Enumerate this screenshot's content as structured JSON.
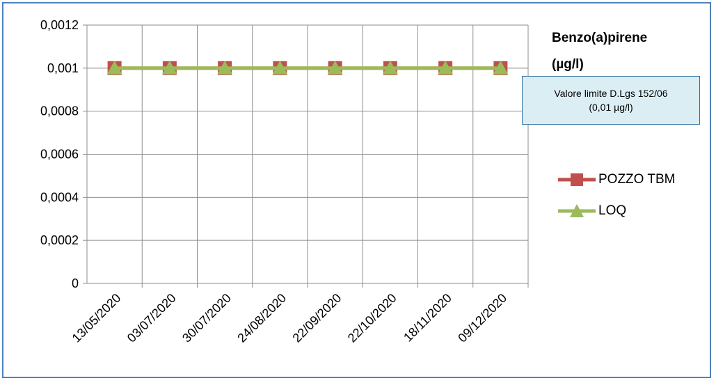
{
  "chart_data": {
    "type": "line",
    "title": "Benzo(a)pirene\n(µg/l)",
    "xlabel": "",
    "ylabel": "",
    "categories": [
      "13/05/2020",
      "03/07/2020",
      "30/07/2020",
      "24/08/2020",
      "22/09/2020",
      "22/10/2020",
      "18/11/2020",
      "09/12/2020"
    ],
    "series": [
      {
        "name": "POZZO TBM",
        "values": [
          0.001,
          0.001,
          0.001,
          0.001,
          0.001,
          0.001,
          0.001,
          0.001
        ],
        "color": "#c0504d",
        "marker": "square"
      },
      {
        "name": "LOQ",
        "values": [
          0.001,
          0.001,
          0.001,
          0.001,
          0.001,
          0.001,
          0.001,
          0.001
        ],
        "color": "#9bbb59",
        "marker": "triangle"
      }
    ],
    "ylim": [
      0,
      0.0012
    ],
    "yticks": [
      "0",
      "0,0002",
      "0,0004",
      "0,0006",
      "0,0008",
      "0,001",
      "0,0012"
    ],
    "grid": true,
    "legend_position": "right",
    "annotation": {
      "line1": "Valore limite D.Lgs 152/06",
      "line2": "(0,01 µg/l)"
    }
  }
}
